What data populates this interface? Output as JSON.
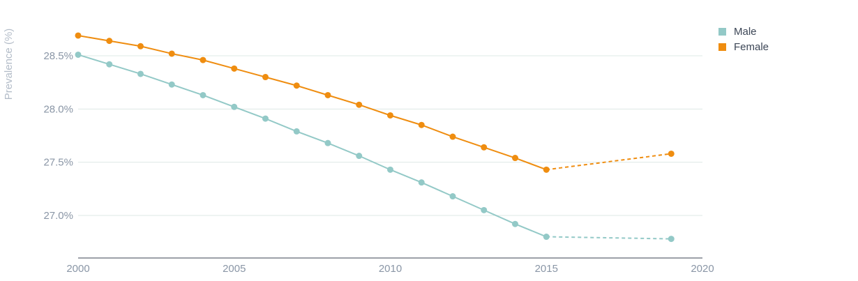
{
  "chart_data": {
    "type": "line",
    "ylabel": "Prevalence (%)",
    "xlabel": "",
    "xlim": [
      2000,
      2020
    ],
    "ylim": [
      26.6,
      28.8
    ],
    "x_ticks": [
      2000,
      2005,
      2010,
      2015,
      2020
    ],
    "x_tick_labels": [
      "2000",
      "2005",
      "2010",
      "2015",
      "2020"
    ],
    "y_ticks": [
      27.0,
      27.5,
      28.0,
      28.5
    ],
    "y_tick_labels": [
      "27.0%",
      "27.5%",
      "28.0%",
      "28.5%"
    ],
    "grid": true,
    "legend_position": "top-right",
    "series": [
      {
        "name": "Male",
        "color": "#93c9c7",
        "x": [
          2000,
          2001,
          2002,
          2003,
          2004,
          2005,
          2006,
          2007,
          2008,
          2009,
          2010,
          2011,
          2012,
          2013,
          2014,
          2015
        ],
        "values": [
          28.51,
          28.42,
          28.33,
          28.23,
          28.13,
          28.02,
          27.91,
          27.79,
          27.68,
          27.56,
          27.43,
          27.31,
          27.18,
          27.05,
          26.92,
          26.8
        ],
        "projection": {
          "x": [
            2015,
            2019
          ],
          "values": [
            26.8,
            26.78
          ]
        }
      },
      {
        "name": "Female",
        "color": "#ef8d10",
        "x": [
          2000,
          2001,
          2002,
          2003,
          2004,
          2005,
          2006,
          2007,
          2008,
          2009,
          2010,
          2011,
          2012,
          2013,
          2014,
          2015
        ],
        "values": [
          28.69,
          28.64,
          28.59,
          28.52,
          28.46,
          28.38,
          28.3,
          28.22,
          28.13,
          28.04,
          27.94,
          27.85,
          27.74,
          27.64,
          27.54,
          27.43
        ],
        "projection": {
          "x": [
            2015,
            2019
          ],
          "values": [
            27.43,
            27.58
          ]
        }
      }
    ]
  }
}
